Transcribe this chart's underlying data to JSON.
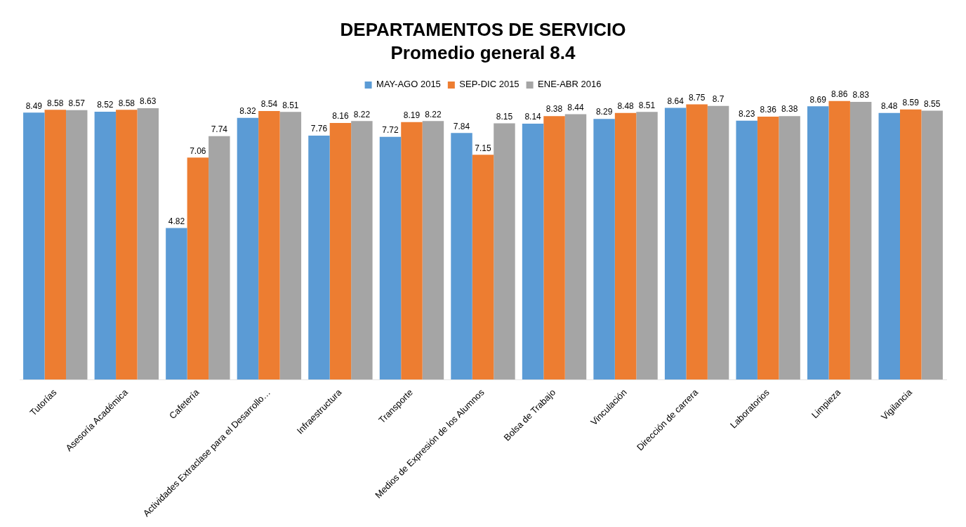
{
  "chart_data": {
    "type": "bar",
    "title": "DEPARTAMENTOS DE SERVICIO",
    "subtitle": "Promedio general 8.4",
    "categories": [
      "Tutorías",
      "Asesoría Académica",
      "Cafetería",
      "Actividades Extraclase para el Desarrollo…",
      "Infraestructura",
      "Transporte",
      "Medios de Expresión de los Alumnos",
      "Bolsa de Trabajo",
      "Vinculación",
      "Dirección de carrera",
      "Laboratorios",
      "Limpieza",
      "Vigilancia"
    ],
    "series": [
      {
        "name": "MAY-AGO 2015",
        "color": "#5b9bd5",
        "values": [
          8.49,
          8.52,
          4.82,
          8.32,
          7.76,
          7.72,
          7.84,
          8.14,
          8.29,
          8.64,
          8.23,
          8.69,
          8.48
        ]
      },
      {
        "name": "SEP-DIC 2015",
        "color": "#ed7d31",
        "values": [
          8.58,
          8.58,
          7.06,
          8.54,
          8.16,
          8.19,
          7.15,
          8.38,
          8.48,
          8.75,
          8.36,
          8.86,
          8.59
        ]
      },
      {
        "name": "ENE-ABR 2016",
        "color": "#a5a5a5",
        "values": [
          8.57,
          8.63,
          7.74,
          8.51,
          8.22,
          8.22,
          8.15,
          8.44,
          8.51,
          8.7,
          8.38,
          8.83,
          8.55
        ]
      }
    ],
    "data_labels": true,
    "legend": "top",
    "grid": false,
    "tick_labels": "x"
  }
}
